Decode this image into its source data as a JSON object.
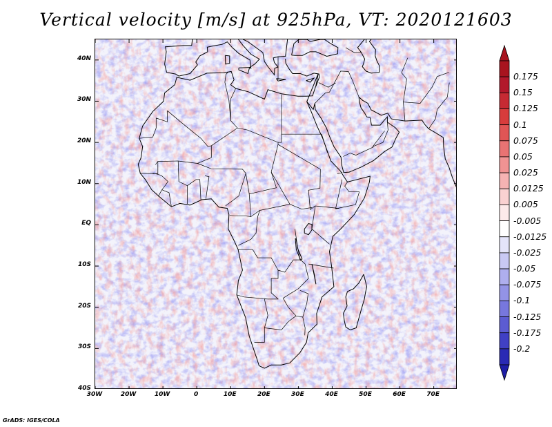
{
  "title": "Vertical velocity [m/s] at 925hPa, VT: 2020121603",
  "credit": "GrADS: IGES/COLA",
  "map": {
    "lon_range": [
      -30,
      77
    ],
    "lat_range": [
      -40,
      45
    ],
    "lat_ticks": [
      {
        "value": 40,
        "label": "40N"
      },
      {
        "value": 30,
        "label": "30N"
      },
      {
        "value": 20,
        "label": "20N"
      },
      {
        "value": 10,
        "label": "10N"
      },
      {
        "value": 0,
        "label": "EQ"
      },
      {
        "value": -10,
        "label": "10S"
      },
      {
        "value": -20,
        "label": "20S"
      },
      {
        "value": -30,
        "label": "30S"
      },
      {
        "value": -40,
        "label": "40S"
      }
    ],
    "lon_ticks": [
      {
        "value": -30,
        "label": "30W"
      },
      {
        "value": -20,
        "label": "20W"
      },
      {
        "value": -10,
        "label": "10W"
      },
      {
        "value": 0,
        "label": "0"
      },
      {
        "value": 10,
        "label": "10E"
      },
      {
        "value": 20,
        "label": "20E"
      },
      {
        "value": 30,
        "label": "30E"
      },
      {
        "value": 40,
        "label": "40E"
      },
      {
        "value": 50,
        "label": "50E"
      },
      {
        "value": 60,
        "label": "60E"
      },
      {
        "value": 70,
        "label": "70E"
      }
    ]
  },
  "colorbar": {
    "levels": [
      {
        "label": "0.175",
        "color": "#b2182b"
      },
      {
        "label": "0.15",
        "color": "#c62a33"
      },
      {
        "label": "0.125",
        "color": "#d73c3c"
      },
      {
        "label": "0.1",
        "color": "#e05555"
      },
      {
        "label": "0.075",
        "color": "#e97373"
      },
      {
        "label": "0.05",
        "color": "#f09393"
      },
      {
        "label": "0.025",
        "color": "#f6b3b3"
      },
      {
        "label": "0.0125",
        "color": "#fad1d1"
      },
      {
        "label": "0.005",
        "color": "#fdeaea"
      },
      {
        "label": "-0.005",
        "color": "#ffffff"
      },
      {
        "label": "-0.0125",
        "color": "#e4e4fa"
      },
      {
        "label": "-0.025",
        "color": "#c9c9f4"
      },
      {
        "label": "-0.05",
        "color": "#aeaeee"
      },
      {
        "label": "-0.075",
        "color": "#9393e6"
      },
      {
        "label": "-0.1",
        "color": "#7777dd"
      },
      {
        "label": "-0.125",
        "color": "#5c5cd2"
      },
      {
        "label": "-0.175",
        "color": "#4040c4"
      },
      {
        "label": "-0.2",
        "color": "#2a2ab4"
      }
    ],
    "top_color": "#a8141f",
    "bottom_color": "#1e1ea6"
  }
}
